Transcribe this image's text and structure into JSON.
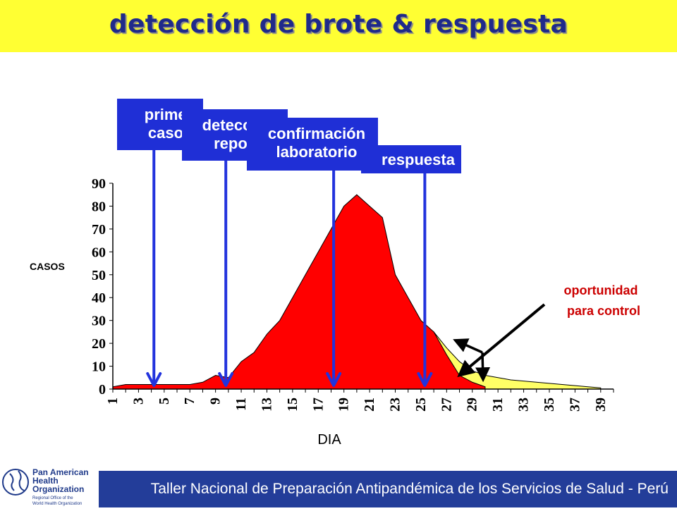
{
  "title": "detección de brote & respuesta",
  "callouts": [
    {
      "line1": "primer",
      "line2": "caso"
    },
    {
      "line1": "detección/",
      "line2": "reporte"
    },
    {
      "line1": "confirmación",
      "line2": "laboratorio"
    },
    {
      "line1": "respuesta",
      "line2": ""
    }
  ],
  "annotation": {
    "line1": "oportunidad",
    "line2": "para control",
    "color": "#cc0000"
  },
  "footer": {
    "text": "Taller Nacional de Preparación Antipandémica de los Servicios de Salud - Perú",
    "logo": {
      "line1": "Pan American",
      "line2": "Health",
      "line3": "Organization",
      "sub1": "Regional Office of the",
      "sub2": "World Health Organization"
    }
  },
  "colors": {
    "header": "#ffff33",
    "title": "#1f2a8a",
    "epidemic": "#ff0000",
    "opportunity": "#ffff66",
    "arrow": "#2233dd",
    "footer": "#233d99"
  },
  "chart_data": {
    "type": "area",
    "xlabel": "DIA",
    "ylabel": "CASOS",
    "ylim": [
      0,
      90
    ],
    "yticks": [
      0,
      10,
      20,
      30,
      40,
      50,
      60,
      70,
      80,
      90
    ],
    "xlim": [
      1,
      40
    ],
    "xticks": [
      "1",
      "3",
      "5",
      "7",
      "9",
      "11",
      "13",
      "15",
      "17",
      "19",
      "21",
      "23",
      "25",
      "27",
      "29",
      "31",
      "33",
      "35",
      "37",
      "39"
    ],
    "series": [
      {
        "x": [
          1,
          2,
          3,
          4,
          5,
          6,
          7,
          8,
          9,
          10,
          11,
          12,
          13,
          14,
          15,
          16,
          17,
          18,
          19,
          20,
          21,
          22,
          23,
          24,
          25,
          26,
          27,
          28,
          29,
          30
        ],
        "values": [
          1,
          2,
          2,
          2,
          2,
          2,
          2,
          3,
          6,
          5,
          12,
          16,
          24,
          30,
          40,
          50,
          60,
          70,
          80,
          85,
          80,
          75,
          50,
          40,
          30,
          25,
          15,
          6,
          3,
          1
        ],
        "color": "#ff0000"
      },
      {
        "x": [
          26,
          27,
          28,
          29,
          30,
          31,
          32,
          33,
          34,
          35,
          36,
          37,
          38,
          39
        ],
        "values": [
          25,
          18,
          12,
          8,
          6,
          5,
          4,
          3.5,
          3,
          2.5,
          2,
          1.5,
          1,
          0.5
        ],
        "color": "#ffff66"
      }
    ],
    "event_days": [
      4.2,
      9.8,
      18.2,
      25.3
    ],
    "grid": false,
    "legend": "none"
  }
}
